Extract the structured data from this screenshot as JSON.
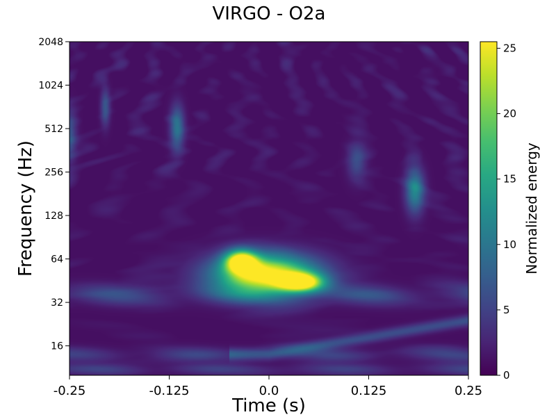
{
  "chart_data": {
    "type": "heatmap",
    "title": "VIRGO - O2a",
    "xlabel": "Time (s)",
    "ylabel": "Frequency (Hz)",
    "xlim": [
      -0.25,
      0.25
    ],
    "ylim": [
      10,
      2048
    ],
    "yscale": "log2",
    "xticks": [
      {
        "value": -0.25,
        "label": "-0.25"
      },
      {
        "value": -0.125,
        "label": "-0.125"
      },
      {
        "value": 0.0,
        "label": "0.0"
      },
      {
        "value": 0.125,
        "label": "0.125"
      },
      {
        "value": 0.25,
        "label": "0.25"
      }
    ],
    "yticks": [
      {
        "value": 16,
        "label": "16"
      },
      {
        "value": 32,
        "label": "32"
      },
      {
        "value": 64,
        "label": "64"
      },
      {
        "value": 128,
        "label": "128"
      },
      {
        "value": 256,
        "label": "256"
      },
      {
        "value": 512,
        "label": "512"
      },
      {
        "value": 1024,
        "label": "1024"
      },
      {
        "value": 2048,
        "label": "2048"
      }
    ],
    "colormap": "viridis",
    "colorbar": {
      "label": "Normalized energy",
      "range": [
        0,
        25.5
      ],
      "ticks": [
        {
          "value": 0,
          "label": "0"
        },
        {
          "value": 5,
          "label": "5"
        },
        {
          "value": 10,
          "label": "10"
        },
        {
          "value": 15,
          "label": "15"
        },
        {
          "value": 20,
          "label": "20"
        },
        {
          "value": 25,
          "label": "25"
        }
      ]
    },
    "features": [
      {
        "kind": "blob",
        "t": -0.005,
        "f": 50,
        "dt": 0.045,
        "dlogf": 0.32,
        "energy": 25.5
      },
      {
        "kind": "blob",
        "t": -0.035,
        "f": 62,
        "dt": 0.014,
        "dlogf": 0.18,
        "energy": 22
      },
      {
        "kind": "blob",
        "t": 0.04,
        "f": 44,
        "dt": 0.02,
        "dlogf": 0.15,
        "energy": 22
      },
      {
        "kind": "blob",
        "t": 0.183,
        "f": 190,
        "dt": 0.008,
        "dlogf": 0.35,
        "energy": 11
      },
      {
        "kind": "blob",
        "t": -0.115,
        "f": 520,
        "dt": 0.006,
        "dlogf": 0.35,
        "energy": 9
      },
      {
        "kind": "blob",
        "t": -0.205,
        "f": 720,
        "dt": 0.004,
        "dlogf": 0.3,
        "energy": 6
      },
      {
        "kind": "blob",
        "t": 0.11,
        "f": 300,
        "dt": 0.008,
        "dlogf": 0.3,
        "energy": 5
      },
      {
        "kind": "blob",
        "t": -0.25,
        "f": 450,
        "dt": 0.006,
        "dlogf": 0.4,
        "energy": 6
      },
      {
        "kind": "band",
        "f": 36,
        "dlogf": 0.17,
        "energy": 5.5
      },
      {
        "kind": "band",
        "f": 14,
        "dlogf": 0.12,
        "energy": 4
      },
      {
        "kind": "band",
        "f": 11,
        "dlogf": 0.09,
        "energy": 4
      },
      {
        "kind": "arc",
        "t0": 0.0,
        "t1": 0.25,
        "f0": 14,
        "f1": 24,
        "dlogf": 0.09,
        "energy": 5
      }
    ]
  }
}
